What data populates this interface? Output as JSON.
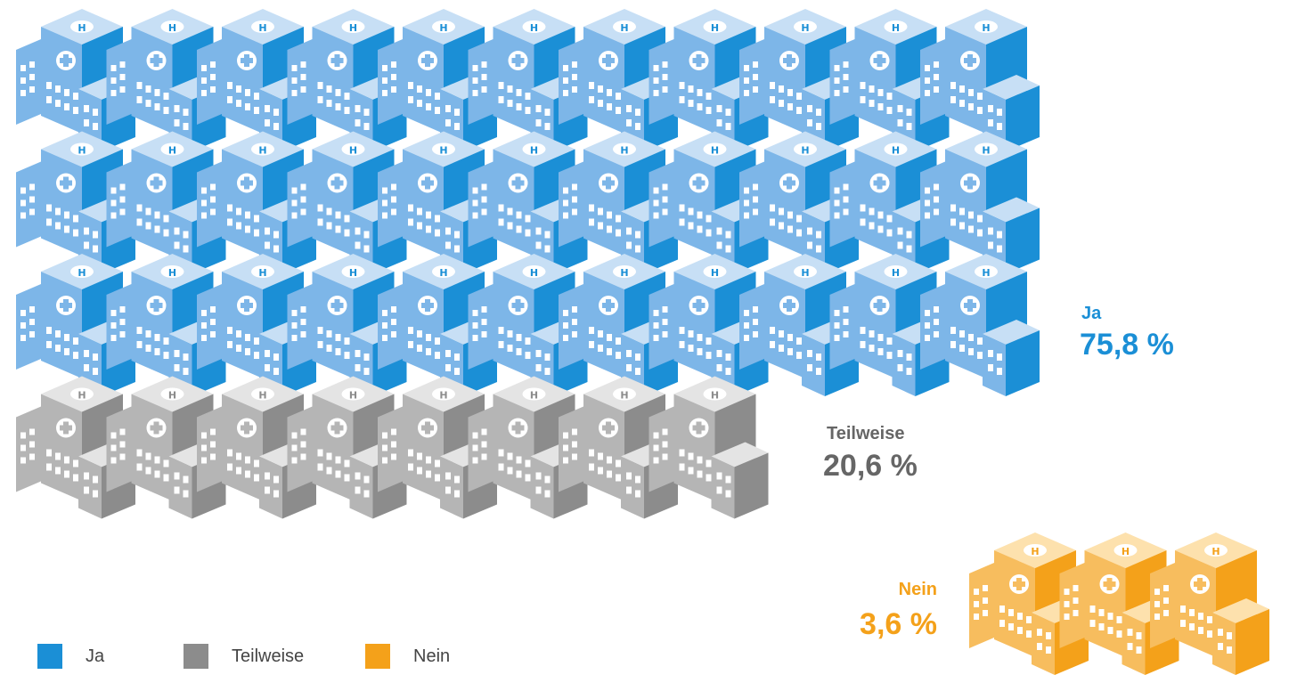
{
  "chart_data": {
    "type": "pictogram",
    "title": "",
    "categories": [
      "Ja",
      "Teilweise",
      "Nein"
    ],
    "values": [
      75.8,
      20.6,
      3.6
    ],
    "value_labels": [
      "75,8 %",
      "20,6 %",
      "3,6 %"
    ],
    "icon_counts": [
      33,
      8,
      3
    ],
    "icon": "hospital-building-icon",
    "colors": {
      "Ja": "#1b8fd6",
      "Teilweise": "#8c8c8c",
      "Nein": "#f4a11a"
    },
    "legend": {
      "position": "bottom-left",
      "entries": [
        "Ja",
        "Teilweise",
        "Nein"
      ]
    }
  }
}
